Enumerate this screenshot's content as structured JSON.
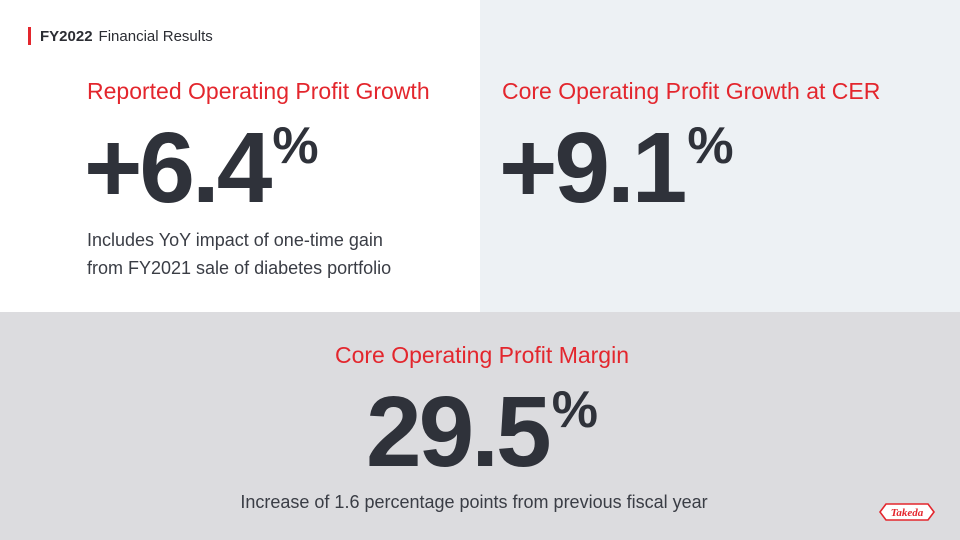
{
  "header": {
    "year": "FY2022",
    "title": "Financial Results"
  },
  "metrics": [
    {
      "label": "Reported Operating Profit Growth",
      "value": "+6.4",
      "unit": "%",
      "note_lines": [
        "Includes YoY impact of one-time gain",
        "from FY2021 sale of diabetes portfolio"
      ]
    },
    {
      "label": "Core Operating Profit Growth at CER",
      "value": "+9.1",
      "unit": "%"
    },
    {
      "label": "Core Operating Profit Margin",
      "value": "29.5",
      "unit": "%",
      "note": "Increase of 1.6 percentage points from previous fiscal year"
    }
  ],
  "logo": {
    "text": "Takeda",
    "color": "#e3262d"
  },
  "colors": {
    "accent": "#e3262d",
    "panel_light": "#edf1f4",
    "panel_gray": "#dcdcdf",
    "text_dark": "#2f323a"
  }
}
